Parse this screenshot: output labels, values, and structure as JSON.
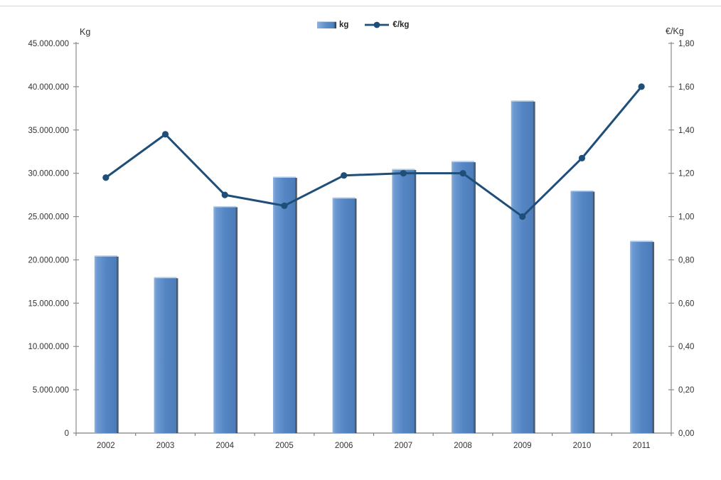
{
  "page": {
    "background": "#ffffff",
    "top_border_color": "#d6d3d0"
  },
  "legend": {
    "position": "top",
    "items": [
      {
        "label": "kg",
        "type": "bar"
      },
      {
        "label": "€/kg",
        "type": "line"
      }
    ]
  },
  "left_axis": {
    "title": "Kg",
    "tick_labels": [
      "45.000.000",
      "40.000.000",
      "35.000.000",
      "30.000.000",
      "25.000.000",
      "20.000.000",
      "15.000.000",
      "10.000.000",
      "5.000.000",
      "0"
    ]
  },
  "right_axis": {
    "title": "€/Kg",
    "tick_labels": [
      "1,80",
      "1,60",
      "1,40",
      "1,20",
      "1,00",
      "0,80",
      "0,60",
      "0,40",
      "0,20",
      "0,00"
    ]
  },
  "chart_data": {
    "type": "combo-bar-line",
    "categories": [
      "2002",
      "2003",
      "2004",
      "2005",
      "2006",
      "2007",
      "2008",
      "2009",
      "2010",
      "2011"
    ],
    "series": [
      {
        "name": "kg",
        "type": "bar",
        "axis": "left",
        "values": [
          20500000,
          18000000,
          26200000,
          29600000,
          27200000,
          30500000,
          31400000,
          38400000,
          28000000,
          22200000
        ]
      },
      {
        "name": "€/kg",
        "type": "line",
        "axis": "right",
        "values": [
          1.18,
          1.38,
          1.1,
          1.05,
          1.19,
          1.2,
          1.2,
          1.0,
          1.27,
          1.6
        ]
      }
    ],
    "left_ylim": [
      0,
      45000000
    ],
    "left_step": 5000000,
    "right_ylim": [
      0,
      1.8
    ],
    "right_step": 0.2,
    "grid": "off",
    "legend_position": "top",
    "colors": {
      "bar": "#4f81bd",
      "bar_light": "#8fb2dd",
      "bar_shadow": "#27374c",
      "line": "#1f4e79",
      "axis_line": "#8c8c8c",
      "text": "#333333"
    }
  }
}
